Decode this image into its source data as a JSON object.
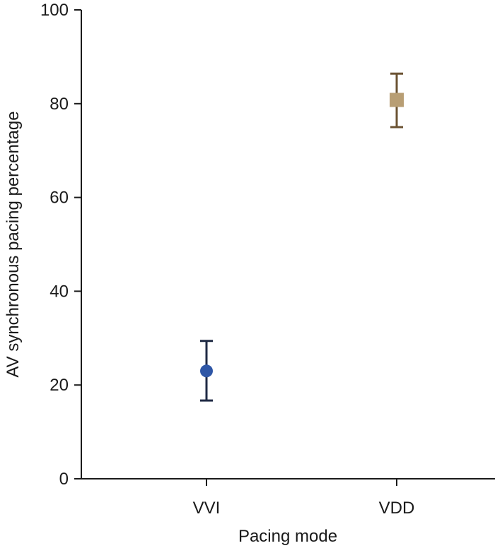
{
  "chart_data": {
    "type": "scatter",
    "title": "",
    "xlabel": "Pacing mode",
    "ylabel": "AV synchronous pacing percentage",
    "categories": [
      "VVI",
      "VDD"
    ],
    "ylim": [
      0,
      100
    ],
    "yticks": [
      0,
      20,
      40,
      60,
      80,
      100
    ],
    "grid": false,
    "series": [
      {
        "name": "VVI",
        "value": 23,
        "error_low": 16.7,
        "error_high": 29.4,
        "marker": "circle",
        "color": "#2e56a6",
        "error_color": "#1f2a44"
      },
      {
        "name": "VDD",
        "value": 80.8,
        "error_low": 75,
        "error_high": 86.4,
        "marker": "square",
        "color": "#b89e74",
        "error_color": "#6b5333"
      }
    ]
  }
}
